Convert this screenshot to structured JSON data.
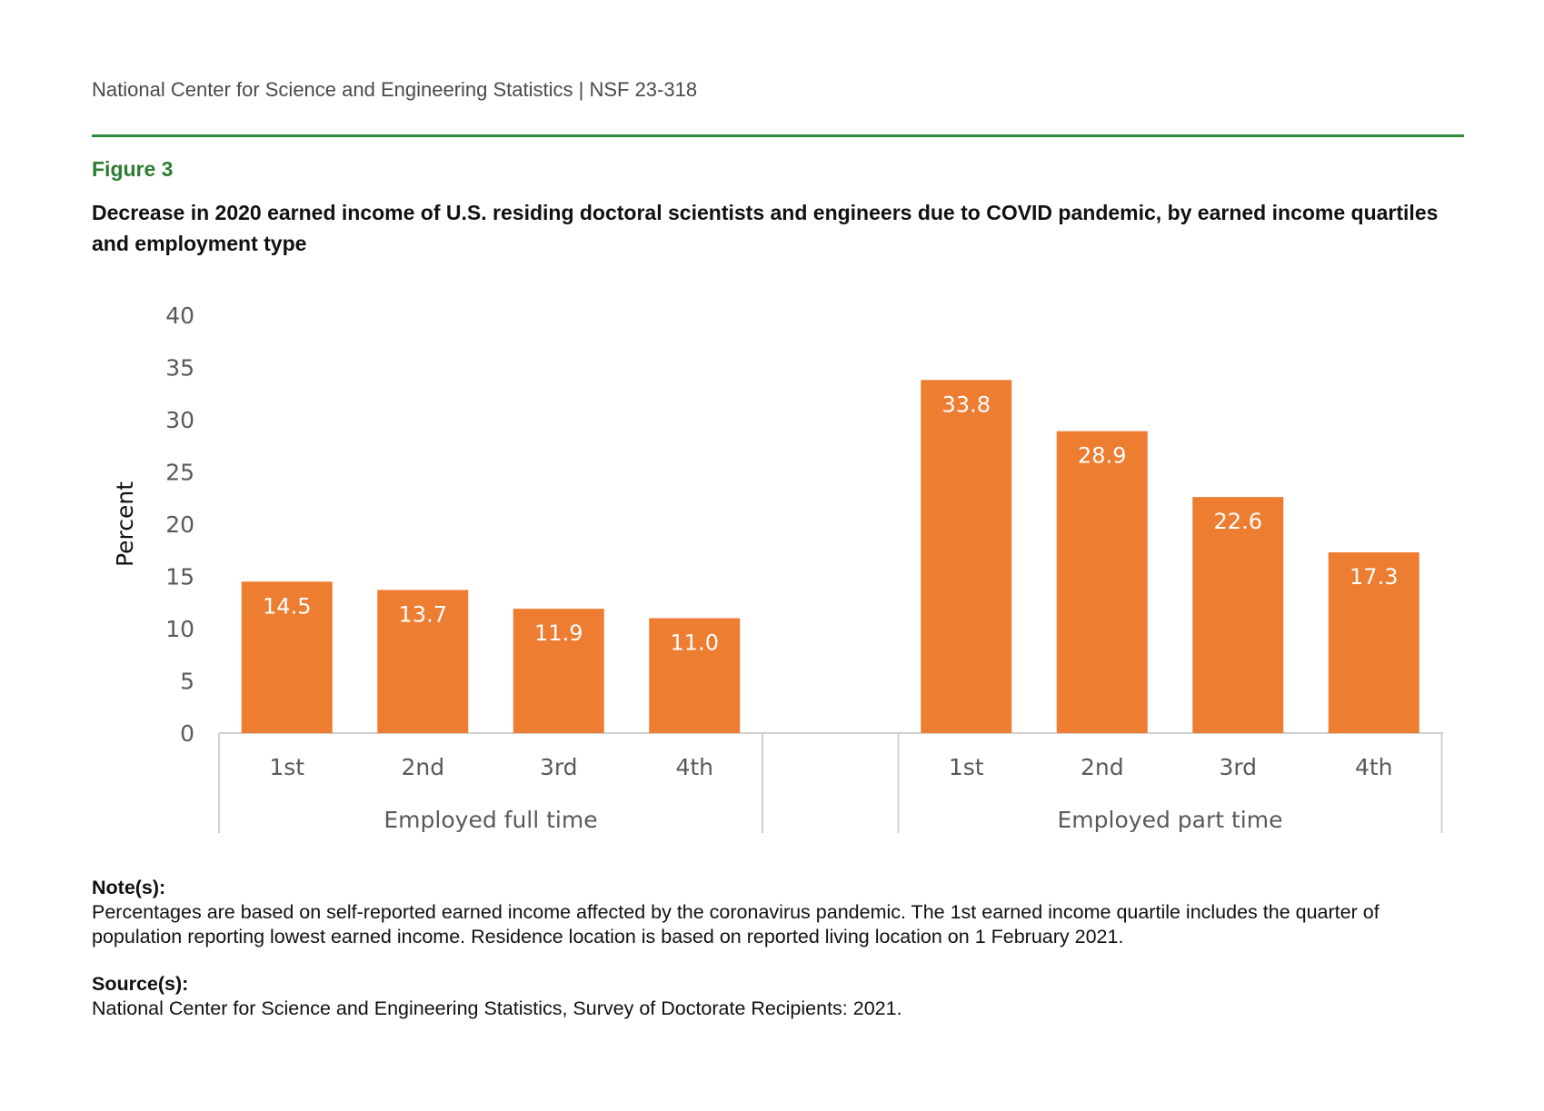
{
  "header": {
    "text": "National Center for Science and Engineering Statistics  |  NSF 23-318"
  },
  "figure": {
    "label": "Figure 3",
    "title": "Decrease in 2020 earned income of U.S. residing doctoral scientists and engineers due to COVID pandemic, by earned income quartiles and employment type"
  },
  "colors": {
    "bar": "#ED7D31",
    "accent_green": "#2E8B3A",
    "axis": "#d0d0d0",
    "tick_text": "#595959"
  },
  "chart_data": {
    "type": "bar",
    "ylabel": "Percent",
    "ylim": [
      0,
      40
    ],
    "yticks": [
      0,
      5,
      10,
      15,
      20,
      25,
      30,
      35,
      40
    ],
    "groups": [
      {
        "name": "Employed full time",
        "categories": [
          "1st",
          "2nd",
          "3rd",
          "4th"
        ],
        "values": [
          14.5,
          13.7,
          11.9,
          11.0
        ],
        "labels": [
          "14.5",
          "13.7",
          "11.9",
          "11.0"
        ]
      },
      {
        "name": "Employed part time",
        "categories": [
          "1st",
          "2nd",
          "3rd",
          "4th"
        ],
        "values": [
          33.8,
          28.9,
          22.6,
          17.3
        ],
        "labels": [
          "33.8",
          "28.9",
          "22.6",
          "17.3"
        ]
      }
    ],
    "grid": false,
    "data_labels": "inside-top"
  },
  "notes": {
    "heading": "Note(s):",
    "text": "Percentages are based on self-reported earned income affected by the coronavirus pandemic. The 1st earned income quartile includes the quarter of population reporting lowest earned income. Residence location is based on reported living location on 1 February 2021."
  },
  "source": {
    "heading": "Source(s):",
    "text": "National Center for Science and Engineering Statistics, Survey of Doctorate Recipients: 2021."
  }
}
